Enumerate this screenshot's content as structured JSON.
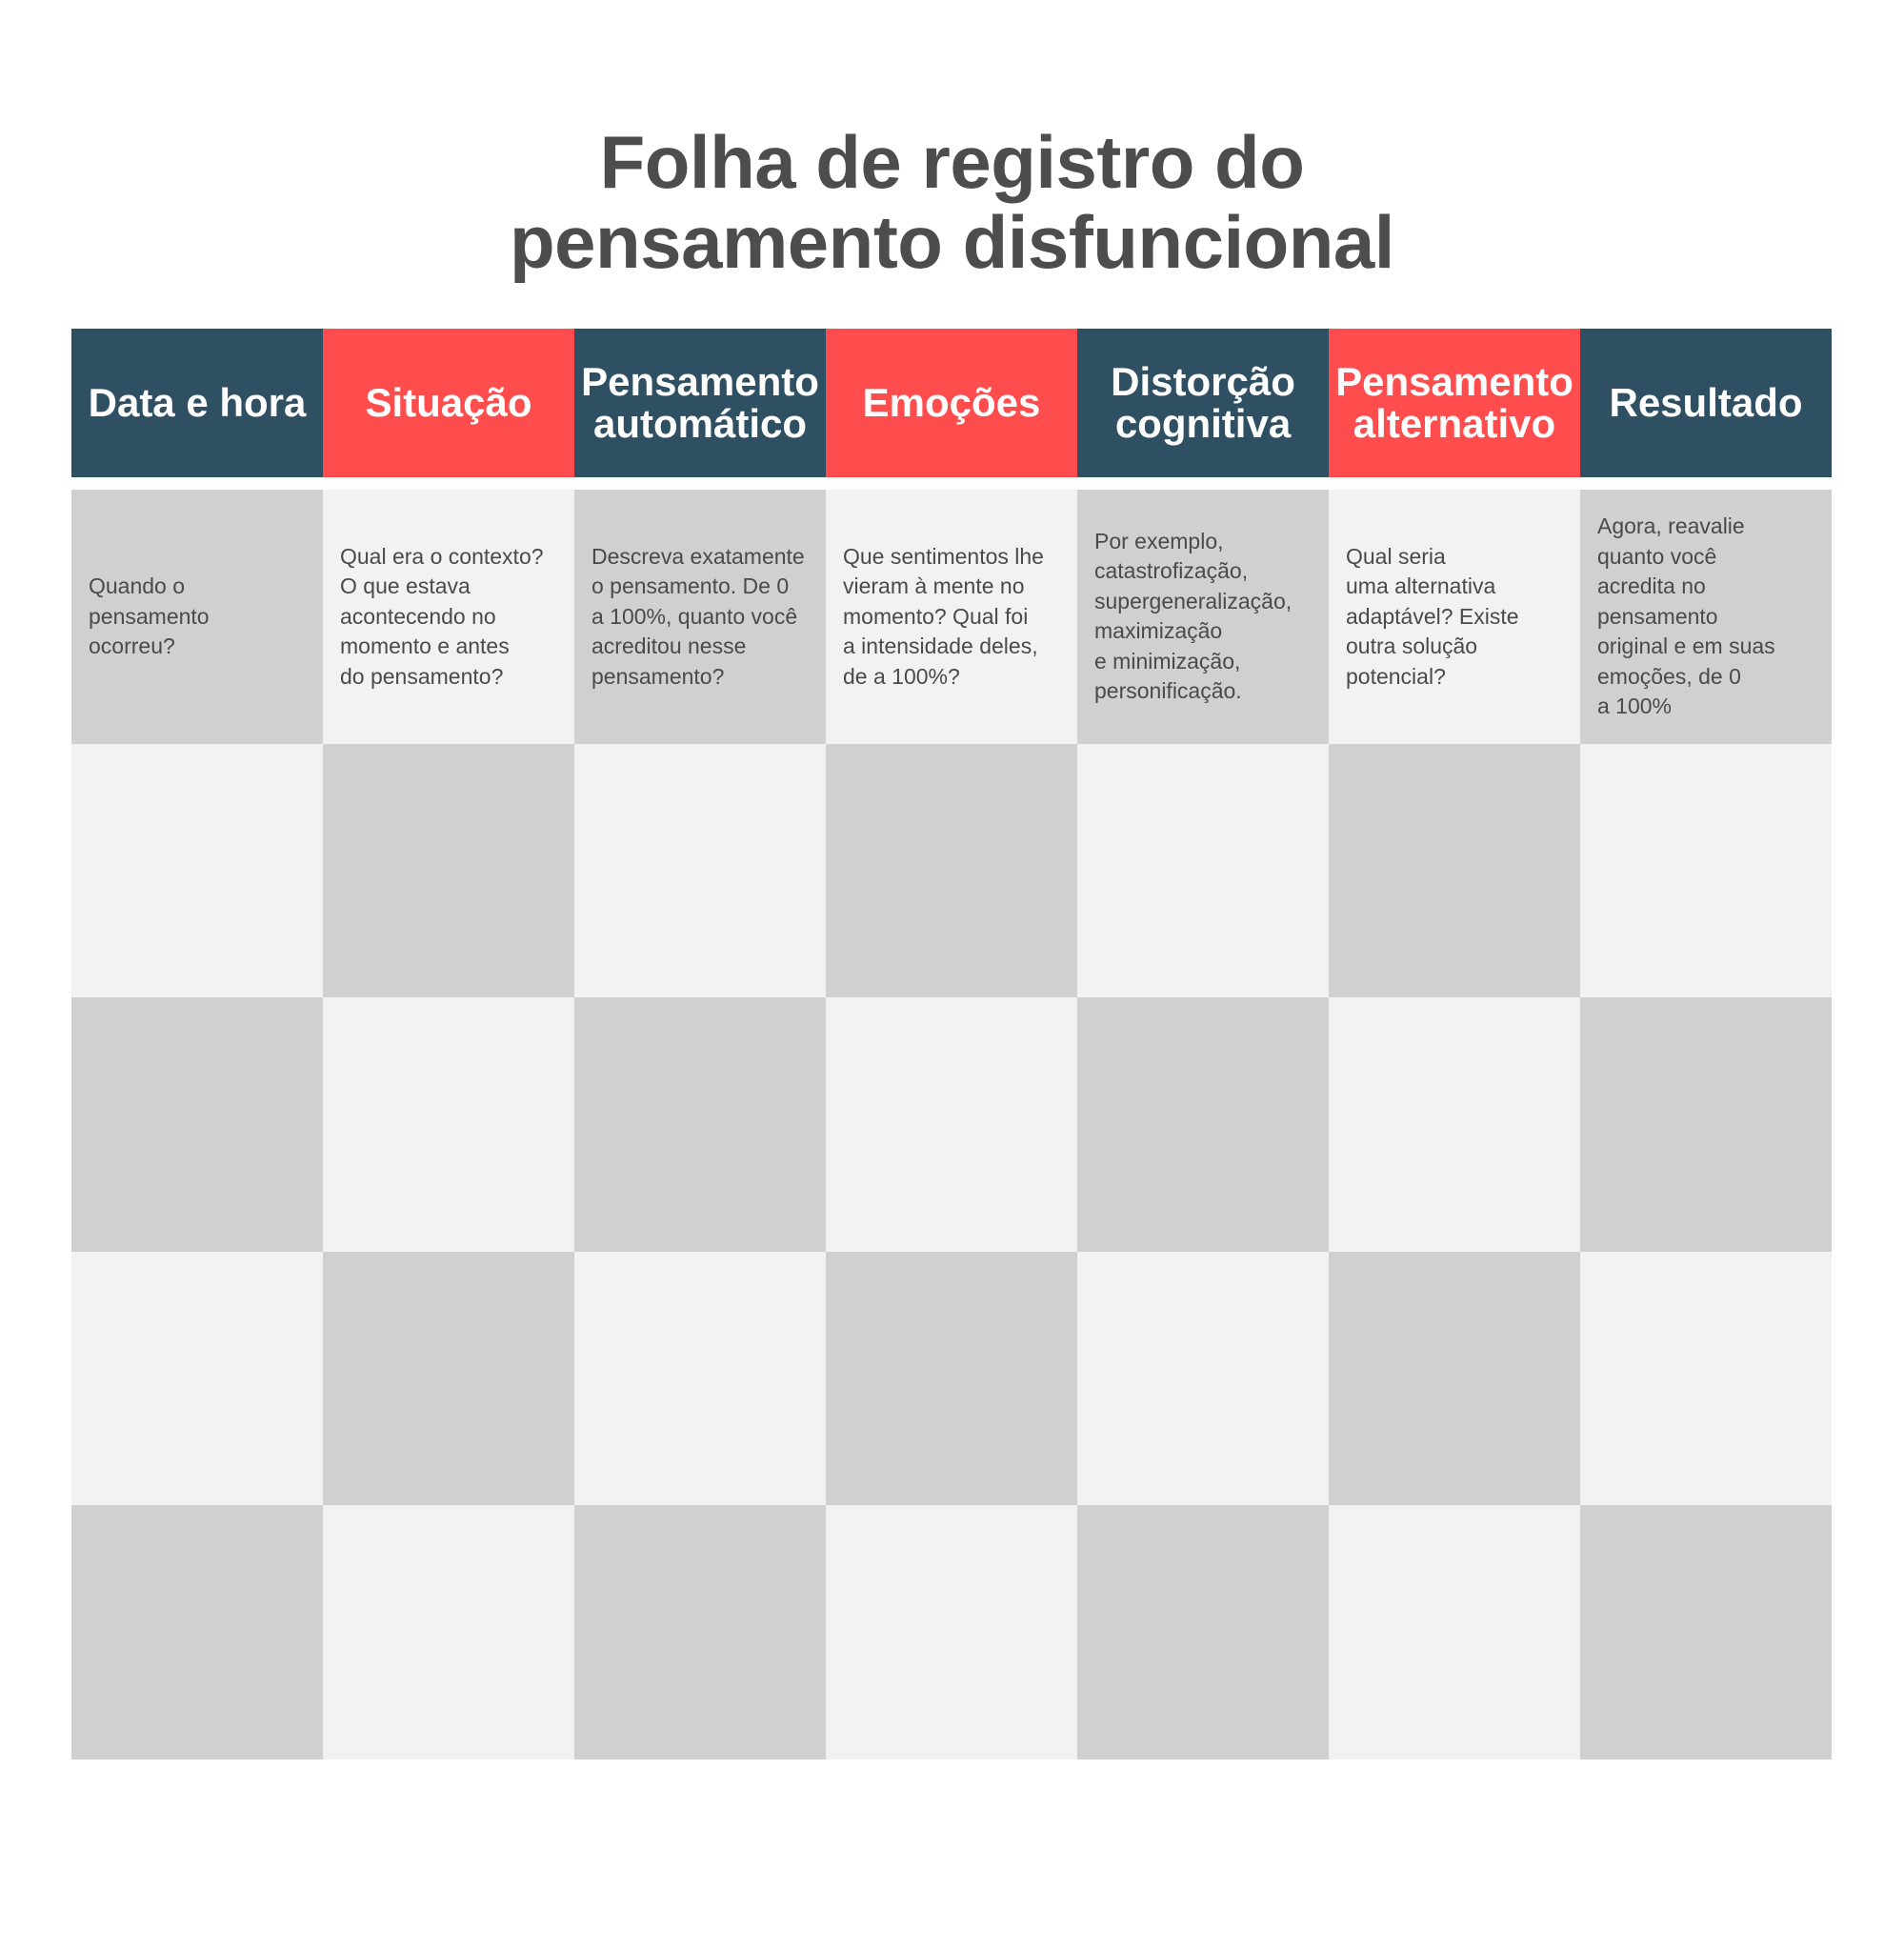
{
  "title": {
    "line1": "Folha de registro do",
    "line2": "pensamento disfuncional"
  },
  "colors": {
    "header_dark": "#2f4f63",
    "header_accent": "#ff4d4d",
    "cell_dark": "#d0d0d0",
    "cell_light": "#f2f2f2",
    "title": "#4d4d4d"
  },
  "columns": [
    {
      "header": "Data e hora",
      "hint": "Quando o\npensamento\nocorreu?"
    },
    {
      "header": "Situação",
      "hint": "Qual era o contexto?\nO que estava\nacontecendo no\nmomento e antes\ndo pensamento?"
    },
    {
      "header": "Pensamento\nautomático",
      "hint": "Descreva exatamente\no pensamento. De 0\na 100%, quanto você\nacreditou nesse\npensamento?"
    },
    {
      "header": "Emoções",
      "hint": "Que sentimentos lhe\nvieram à mente no\nmomento? Qual foi\na intensidade deles,\nde a 100%?"
    },
    {
      "header": "Distorção\ncognitiva",
      "hint": "Por exemplo,\ncatastrofização,\nsupergeneralização,\nmaximização\ne minimização,\npersonificação."
    },
    {
      "header": "Pensamento\nalternativo",
      "hint": "Qual seria\numa alternativa\nadaptável? Existe\noutra solução\npotencial?"
    },
    {
      "header": "Resultado",
      "hint": "Agora, reavalie\nquanto você\nacredita no\npensamento\noriginal e em suas\nemoções, de 0\na 100%"
    }
  ]
}
